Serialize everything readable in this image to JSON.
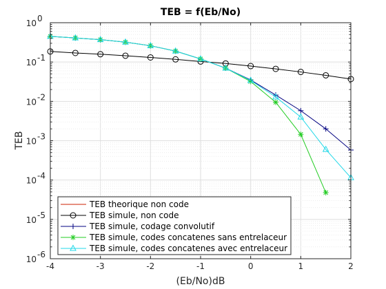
{
  "chart_data": {
    "type": "line",
    "title": "TEB = f(Eb/No)",
    "xlabel": "(Eb/No)dB",
    "ylabel": "TEB",
    "xlim": [
      -4,
      2
    ],
    "ylim": [
      1e-06,
      1
    ],
    "yscale": "log",
    "grid": true,
    "legend_position": "bottom-left",
    "x_ticks": [
      "-4",
      "-3",
      "-2",
      "-1",
      "0",
      "1",
      "2"
    ],
    "x_tick_values": [
      -4,
      -3,
      -2,
      -1,
      0,
      1,
      2
    ],
    "y_tick_exponents": [
      0,
      -1,
      -2,
      -3,
      -4,
      -5,
      -6
    ],
    "y_tick_base": "10",
    "series": [
      {
        "name": "TEB theorique non code",
        "color": "#cc2200",
        "marker": "none",
        "x": [],
        "y": []
      },
      {
        "name": "TEB simule, non code",
        "color": "#000000",
        "marker": "circle",
        "x": [
          -4,
          -3.5,
          -3,
          -2.5,
          -2,
          -1.5,
          -1,
          -0.5,
          0,
          0.5,
          1,
          1.5,
          2
        ],
        "y": [
          0.186,
          0.17,
          0.158,
          0.145,
          0.131,
          0.117,
          0.103,
          0.092,
          0.079,
          0.067,
          0.056,
          0.046,
          0.037
        ]
      },
      {
        "name": "TEB simule, codage convolutif",
        "color": "#000080",
        "marker": "plus",
        "x": [
          -4,
          -3.5,
          -3,
          -2.5,
          -2,
          -1.5,
          -1,
          -0.5,
          0,
          0.5,
          1,
          1.5,
          2
        ],
        "y": [
          0.45,
          0.41,
          0.37,
          0.32,
          0.26,
          0.19,
          0.12,
          0.07,
          0.035,
          0.0145,
          0.0058,
          0.002,
          0.00058
        ]
      },
      {
        "name": "TEB simule, codes concatenes sans entrelaceur",
        "color": "#22cc22",
        "marker": "asterisk",
        "x": [
          -4,
          -3.5,
          -3,
          -2.5,
          -2,
          -1.5,
          -1,
          -0.5,
          0,
          0.5,
          1,
          1.5
        ],
        "y": [
          0.45,
          0.41,
          0.37,
          0.32,
          0.26,
          0.19,
          0.12,
          0.07,
          0.032,
          0.0095,
          0.00145,
          4.8e-05
        ]
      },
      {
        "name": "TEB simule, codes concatenes avec entrelaceur",
        "color": "#22d8e8",
        "marker": "triangle",
        "x": [
          -4,
          -3.5,
          -3,
          -2.5,
          -2,
          -1.5,
          -1,
          -0.5,
          0,
          0.5,
          1,
          1.5,
          2
        ],
        "y": [
          0.45,
          0.41,
          0.37,
          0.32,
          0.26,
          0.19,
          0.12,
          0.07,
          0.034,
          0.013,
          0.004,
          0.0006,
          0.000115
        ]
      }
    ]
  }
}
